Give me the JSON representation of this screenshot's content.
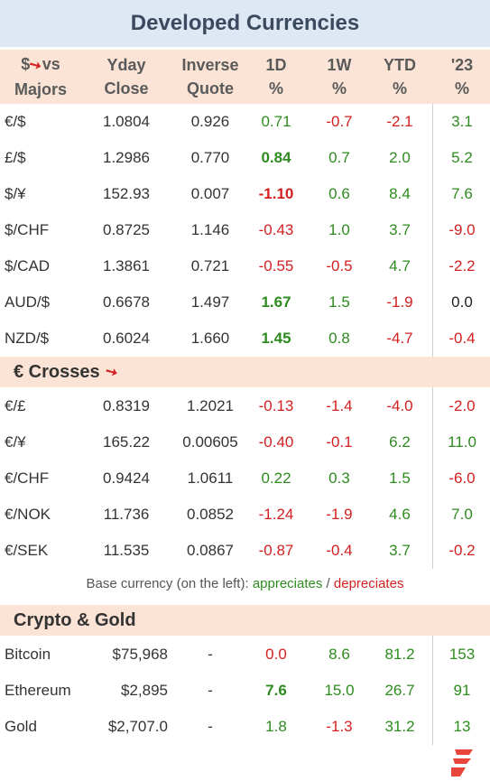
{
  "title": "Developed Currencies",
  "header": {
    "col0_top": "$",
    "col0_top2": "vs",
    "col0_bottom": "Majors",
    "cols": [
      {
        "top": "Yday",
        "bottom": "Close"
      },
      {
        "top": "Inverse",
        "bottom": "Quote"
      },
      {
        "top": "1D",
        "bottom": "%"
      },
      {
        "top": "1W",
        "bottom": "%"
      },
      {
        "top": "YTD",
        "bottom": "%"
      },
      {
        "top": "'23",
        "bottom": "%"
      }
    ]
  },
  "majors": [
    {
      "pair": "€/$",
      "close": "1.0804",
      "inverse": "0.926",
      "d1": "0.71",
      "w1": "-0.7",
      "ytd": "-2.1",
      "y23": "3.1",
      "d1_bold": false
    },
    {
      "pair": "£/$",
      "close": "1.2986",
      "inverse": "0.770",
      "d1": "0.84",
      "w1": "0.7",
      "ytd": "2.0",
      "y23": "5.2",
      "d1_bold": true
    },
    {
      "pair": "$/¥",
      "close": "152.93",
      "inverse": "0.007",
      "d1": "-1.10",
      "w1": "0.6",
      "ytd": "8.4",
      "y23": "7.6",
      "d1_bold": true
    },
    {
      "pair": "$/CHF",
      "close": "0.8725",
      "inverse": "1.146",
      "d1": "-0.43",
      "w1": "1.0",
      "ytd": "3.7",
      "y23": "-9.0",
      "d1_bold": false
    },
    {
      "pair": "$/CAD",
      "close": "1.3861",
      "inverse": "0.721",
      "d1": "-0.55",
      "w1": "-0.5",
      "ytd": "4.7",
      "y23": "-2.2",
      "d1_bold": false
    },
    {
      "pair": "AUD/$",
      "close": "0.6678",
      "inverse": "1.497",
      "d1": "1.67",
      "w1": "1.5",
      "ytd": "-1.9",
      "y23": "0.0",
      "d1_bold": true
    },
    {
      "pair": "NZD/$",
      "close": "0.6024",
      "inverse": "1.660",
      "d1": "1.45",
      "w1": "0.8",
      "ytd": "-4.7",
      "y23": "-0.4",
      "d1_bold": true
    }
  ],
  "crosses_title": "€ Crosses",
  "crosses": [
    {
      "pair": "€/£",
      "close": "0.8319",
      "inverse": "1.2021",
      "d1": "-0.13",
      "w1": "-1.4",
      "ytd": "-4.0",
      "y23": "-2.0",
      "d1_bold": false
    },
    {
      "pair": "€/¥",
      "close": "165.22",
      "inverse": "0.00605",
      "d1": "-0.40",
      "w1": "-0.1",
      "ytd": "6.2",
      "y23": "11.0",
      "d1_bold": false
    },
    {
      "pair": "€/CHF",
      "close": "0.9424",
      "inverse": "1.0611",
      "d1": "0.22",
      "w1": "0.3",
      "ytd": "1.5",
      "y23": "-6.0",
      "d1_bold": false
    },
    {
      "pair": "€/NOK",
      "close": "11.736",
      "inverse": "0.0852",
      "d1": "-1.24",
      "w1": "-1.9",
      "ytd": "4.6",
      "y23": "7.0",
      "d1_bold": false
    },
    {
      "pair": "€/SEK",
      "close": "11.535",
      "inverse": "0.0867",
      "d1": "-0.87",
      "w1": "-0.4",
      "ytd": "3.7",
      "y23": "-0.2",
      "d1_bold": false
    }
  ],
  "note": {
    "prefix": "Base currency (on the left):",
    "appreciates": "appreciates",
    "slash": "/",
    "depreciates": "depreciates"
  },
  "crypto_title": "Crypto & Gold",
  "crypto": [
    {
      "pair": "Bitcoin",
      "close": "$75,968",
      "inverse": "-",
      "d1": "0.0",
      "w1": "8.6",
      "ytd": "81.2",
      "y23": "153",
      "d1_bold": false
    },
    {
      "pair": "Ethereum",
      "close": "$2,895",
      "inverse": "-",
      "d1": "7.6",
      "w1": "15.0",
      "ytd": "26.7",
      "y23": "91",
      "d1_bold": true
    },
    {
      "pair": "Gold",
      "close": "$2,707.0",
      "inverse": "-",
      "d1": "1.8",
      "w1": "-1.3",
      "ytd": "31.2",
      "y23": "13",
      "d1_bold": false
    }
  ],
  "icons": {
    "down_arrow": "down-arrow-icon",
    "logo": "flame-logo-icon"
  },
  "colors": {
    "positive": "#2e8b1f",
    "negative": "#d42020",
    "header_bg": "#fbe4d6",
    "title_bg": "#dde8f4"
  }
}
